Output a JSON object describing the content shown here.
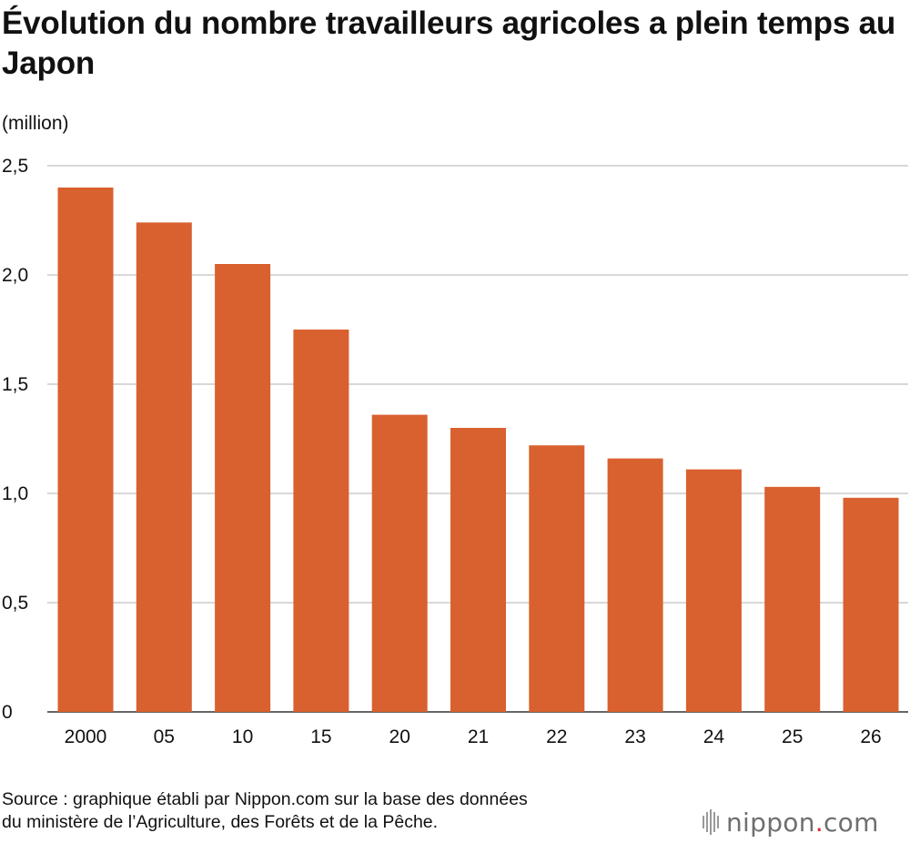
{
  "title": "Évolution du nombre travailleurs agricoles a plein temps au Japon",
  "unit_label": "(million)",
  "source_lines": [
    "Source : graphique établi par Nippon.com sur la base des données",
    "du ministère de l’Agriculture, des Forêts et de la Pêche."
  ],
  "logo": {
    "name": "nippon",
    "dot": ".",
    "suffix": "com"
  },
  "chart_data": {
    "type": "bar",
    "title": "Évolution du nombre travailleurs agricoles a plein temps au Japon",
    "ylabel": "(million)",
    "xlabel": "",
    "categories": [
      "2000",
      "05",
      "10",
      "15",
      "20",
      "21",
      "22",
      "23",
      "24",
      "25",
      "26"
    ],
    "values": [
      2.4,
      2.24,
      2.05,
      1.75,
      1.36,
      1.3,
      1.22,
      1.16,
      1.11,
      1.03,
      0.98
    ],
    "ylim": [
      0,
      2.5
    ],
    "yticks": [
      0,
      0.5,
      1.0,
      1.5,
      2.0,
      2.5
    ],
    "ytick_labels": [
      "0",
      "0,5",
      "1,0",
      "1,5",
      "2,0",
      "2,5"
    ],
    "grid": true,
    "legend": "none",
    "bar_color": "#d9602f",
    "grid_color": "#cccccc"
  }
}
